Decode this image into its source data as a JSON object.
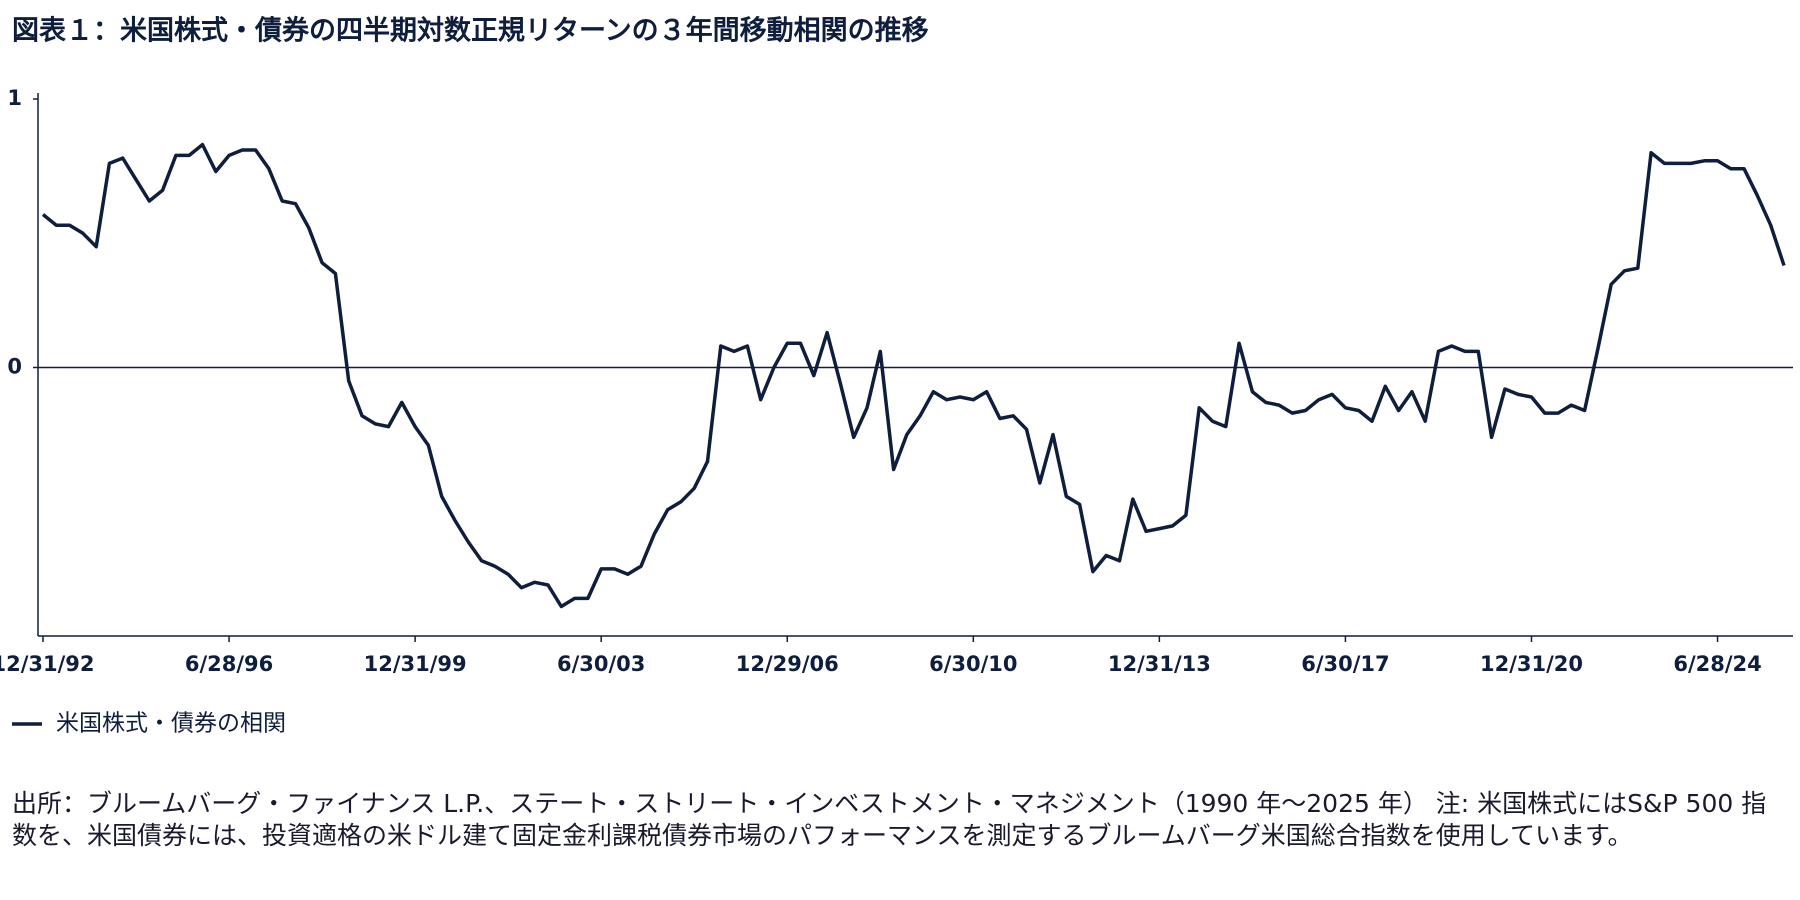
{
  "chart_data": {
    "type": "line",
    "title": "図表１：米国株式・債券の四半期対数正規リターンの３年間移動相関の推移",
    "categories": [
      "12/31/92",
      null,
      null,
      null,
      null,
      null,
      null,
      null,
      null,
      null,
      null,
      null,
      null,
      null,
      "6/28/96",
      null,
      null,
      null,
      null,
      null,
      null,
      null,
      null,
      null,
      null,
      null,
      null,
      null,
      "12/31/99",
      null,
      null,
      null,
      null,
      null,
      null,
      null,
      null,
      null,
      null,
      null,
      null,
      null,
      "6/30/03",
      null,
      null,
      null,
      null,
      null,
      null,
      null,
      null,
      null,
      null,
      null,
      null,
      null,
      "12/29/06",
      null,
      null,
      null,
      null,
      null,
      null,
      null,
      null,
      null,
      null,
      null,
      null,
      null,
      "6/30/10",
      null,
      null,
      null,
      null,
      null,
      null,
      null,
      null,
      null,
      null,
      null,
      null,
      null,
      "12/31/13",
      null,
      null,
      null,
      null,
      null,
      null,
      null,
      null,
      null,
      null,
      null,
      null,
      null,
      "6/30/17",
      null,
      null,
      null,
      null,
      null,
      null,
      null,
      null,
      null,
      null,
      null,
      null,
      null,
      "12/31/20",
      null,
      null,
      null,
      null,
      null,
      null,
      null,
      null,
      null,
      null,
      null,
      null,
      null,
      "6/28/24",
      null,
      null,
      null,
      null,
      null
    ],
    "series": [
      {
        "name": "米国株式・債券の相関",
        "color": "#0f1e3c",
        "values": [
          0.57,
          0.53,
          0.53,
          0.5,
          0.45,
          0.76,
          0.78,
          0.7,
          0.62,
          0.66,
          0.79,
          0.79,
          0.83,
          0.73,
          0.79,
          0.81,
          0.81,
          0.74,
          0.62,
          0.61,
          0.52,
          0.39,
          0.35,
          -0.05,
          -0.18,
          -0.21,
          -0.22,
          -0.13,
          -0.22,
          -0.29,
          -0.48,
          -0.57,
          -0.65,
          -0.72,
          -0.74,
          -0.77,
          -0.82,
          -0.8,
          -0.81,
          -0.89,
          -0.86,
          -0.86,
          -0.75,
          -0.75,
          -0.77,
          -0.74,
          -0.62,
          -0.53,
          -0.5,
          -0.45,
          -0.35,
          0.08,
          0.06,
          0.08,
          -0.12,
          0.0,
          0.09,
          0.09,
          -0.03,
          0.13,
          -0.06,
          -0.26,
          -0.15,
          0.06,
          -0.38,
          -0.25,
          -0.18,
          -0.09,
          -0.12,
          -0.11,
          -0.12,
          -0.09,
          -0.19,
          -0.18,
          -0.23,
          -0.43,
          -0.25,
          -0.48,
          -0.51,
          -0.76,
          -0.7,
          -0.72,
          -0.49,
          -0.61,
          -0.6,
          -0.59,
          -0.55,
          -0.15,
          -0.2,
          -0.22,
          0.09,
          -0.09,
          -0.13,
          -0.14,
          -0.17,
          -0.16,
          -0.12,
          -0.1,
          -0.15,
          -0.16,
          -0.2,
          -0.07,
          -0.16,
          -0.09,
          -0.2,
          0.06,
          0.08,
          0.06,
          0.06,
          -0.26,
          -0.08,
          -0.1,
          -0.11,
          -0.17,
          -0.17,
          -0.14,
          -0.16,
          0.07,
          0.31,
          0.36,
          0.37,
          0.8,
          0.76,
          0.76,
          0.76,
          0.77,
          0.77,
          0.74,
          0.74,
          0.64,
          0.53,
          0.38
        ]
      }
    ],
    "ylim": [
      -1,
      1
    ],
    "yticks": [
      0,
      1
    ],
    "grid": false,
    "footnote": "出所：ブルームバーグ・ファイナンス L.P.、ステート・ストリート・インベストメント・マネジメント（1990 年～2025 年） 注: 米国株式にはS&P 500 指数を、米国債券には、投資適格の米ドル建て固定金利課税債券市場のパフォーマンスを測定するブルームバーグ米国総合指数を使用しています。"
  }
}
